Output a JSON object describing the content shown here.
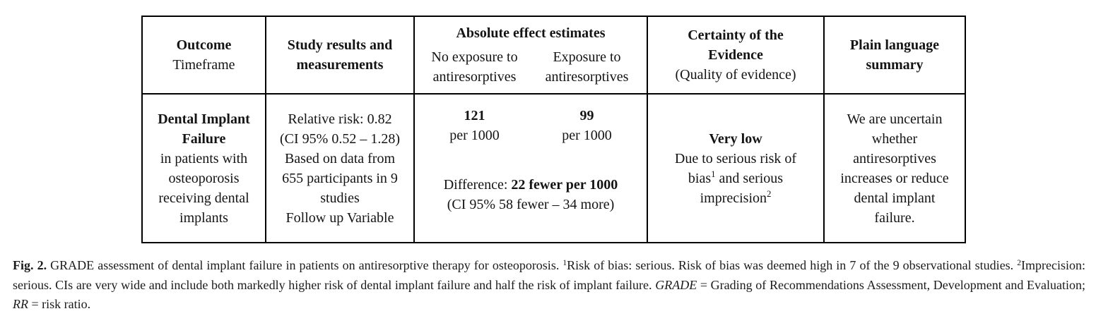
{
  "figure": {
    "table": {
      "header": {
        "outcome": {
          "bold": "Outcome",
          "sub": "Timeframe"
        },
        "study": {
          "bold_lines": [
            "Study results and",
            "measurements"
          ]
        },
        "absolute": {
          "title": "Absolute effect estimates",
          "no_exposure": [
            "No exposure to",
            "antiresorptives"
          ],
          "exposure": [
            "Exposure to",
            "antiresorptives"
          ]
        },
        "certainty": {
          "bold_lines": [
            "Certainty of the",
            "Evidence"
          ],
          "sub": "(Quality of evidence)"
        },
        "plain": {
          "bold_lines": [
            "Plain language",
            "summary"
          ]
        }
      },
      "row": {
        "outcome": {
          "bold_lines": [
            "Dental Implant",
            "Failure"
          ],
          "lines": [
            "in patients with",
            "osteoporosis",
            "receiving dental",
            "implants"
          ]
        },
        "study": {
          "lines": [
            "Relative risk: 0.82",
            "(CI 95% 0.52 – 1.28)",
            "Based on data from",
            "655 participants in 9",
            "studies",
            "Follow up Variable"
          ]
        },
        "absolute": {
          "no_exposure": {
            "value": "121",
            "unit": "per 1000"
          },
          "exposure": {
            "value": "99",
            "unit": "per 1000"
          },
          "difference": {
            "label": "Difference: ",
            "bold": "22 fewer per 1000",
            "ci": "(CI 95% 58 fewer – 34 more)"
          }
        },
        "certainty": {
          "bold": "Very low",
          "line2": "Due to serious risk of",
          "line3_text": "bias",
          "line3_sup": "1",
          "line3_rest": " and serious",
          "line4_text": "imprecision",
          "line4_sup": "2"
        },
        "plain": {
          "lines": [
            "We are uncertain",
            "whether",
            "antiresorptives",
            "increases or reduce",
            "dental implant",
            "failure."
          ]
        }
      }
    },
    "caption": {
      "label": "Fig. 2.",
      "seg1": " GRADE assessment of dental implant failure in patients on antiresorptive therapy for osteoporosis. ",
      "sup1": "1",
      "seg2": "Risk of bias: serious. Risk of bias was deemed high in 7 of the 9 observational studies. ",
      "sup2": "2",
      "seg3": "Imprecision: serious. CIs are very wide and include both markedly higher risk of dental implant failure and half the risk of implant failure. ",
      "grade_term": "GRADE",
      "seg4": " = Grading of Recommendations Assessment, Development and Evaluation; ",
      "rr_term": "RR",
      "seg5": " = risk ratio."
    }
  }
}
